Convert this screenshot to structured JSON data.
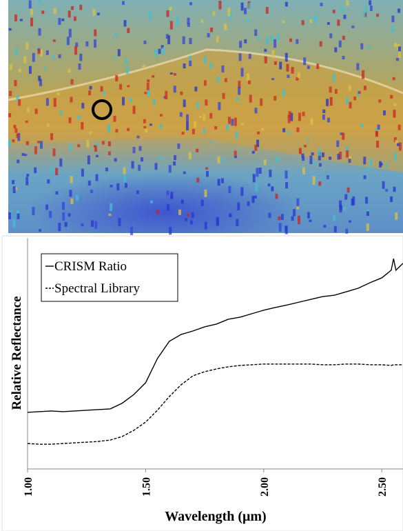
{
  "chart_data": {
    "type": "line",
    "xlabel": "Wavelength (μm)",
    "ylabel": "Relative Reflectance",
    "x": [
      1.0,
      1.05,
      1.1,
      1.15,
      1.2,
      1.25,
      1.3,
      1.35,
      1.4,
      1.45,
      1.5,
      1.55,
      1.6,
      1.65,
      1.7,
      1.75,
      1.8,
      1.85,
      1.9,
      1.95,
      2.0,
      2.05,
      2.1,
      2.15,
      2.2,
      2.25,
      2.3,
      2.35,
      2.4,
      2.45,
      2.5,
      2.54,
      2.55,
      2.56,
      2.59
    ],
    "series": [
      {
        "name": "CRISM Ratio",
        "color": "#000000",
        "line_style": "solid",
        "values": [
          0.245,
          0.248,
          0.251,
          0.248,
          0.251,
          0.254,
          0.257,
          0.26,
          0.284,
          0.322,
          0.373,
          0.478,
          0.552,
          0.582,
          0.597,
          0.615,
          0.627,
          0.648,
          0.657,
          0.672,
          0.687,
          0.699,
          0.71,
          0.722,
          0.734,
          0.746,
          0.752,
          0.767,
          0.782,
          0.806,
          0.827,
          0.86,
          0.91,
          0.86,
          0.89
        ]
      },
      {
        "name": "Spectral Library",
        "color": "#000000",
        "line_style": "dashed",
        "values": [
          0.11,
          0.107,
          0.107,
          0.11,
          0.113,
          0.116,
          0.119,
          0.125,
          0.14,
          0.167,
          0.203,
          0.254,
          0.313,
          0.364,
          0.403,
          0.421,
          0.433,
          0.442,
          0.448,
          0.451,
          0.454,
          0.454,
          0.454,
          0.454,
          0.454,
          0.451,
          0.451,
          0.454,
          0.454,
          0.451,
          0.451,
          0.448,
          0.451,
          0.451,
          0.451
        ]
      }
    ],
    "xlim": [
      1.0,
      2.59
    ],
    "ylim": [
      0,
      1
    ],
    "xticks": [
      {
        "value": 1.0,
        "label": "1.00"
      },
      {
        "value": 1.5,
        "label": "1.50"
      },
      {
        "value": 2.0,
        "label": "2.00"
      },
      {
        "value": 2.5,
        "label": "2.50"
      }
    ],
    "legend": "top-left",
    "grid": false
  }
}
